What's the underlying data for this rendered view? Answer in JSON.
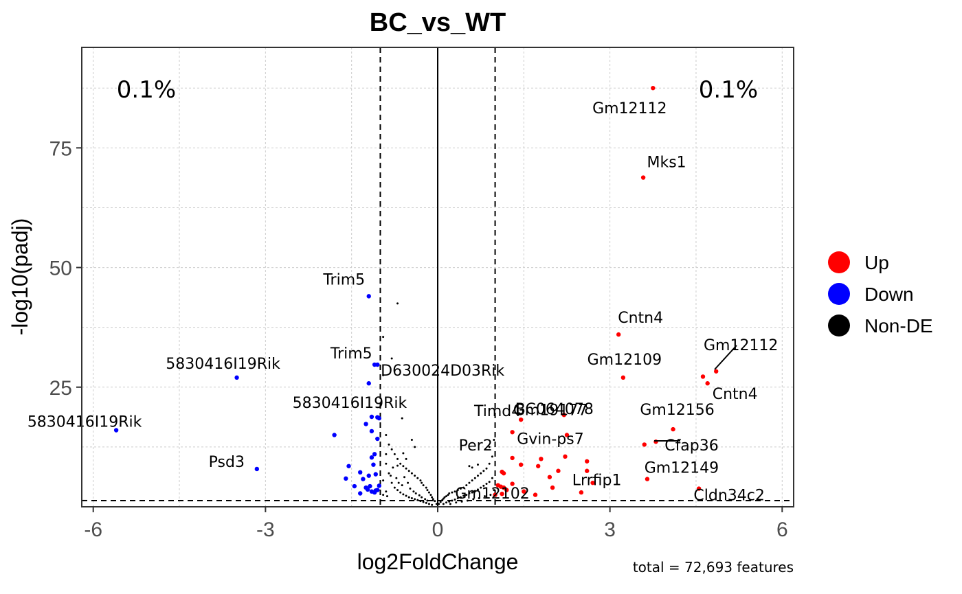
{
  "chart_data": {
    "type": "scatter",
    "title": "BC_vs_WT",
    "xlabel": "log2FoldChange",
    "ylabel": "-log10(padj)",
    "xlim": [
      -6.2,
      6.2
    ],
    "ylim": [
      0,
      96
    ],
    "x_ticks": [
      -6,
      -3,
      0,
      3,
      6
    ],
    "x_tick_labels": [
      "-6",
      "-3",
      "0",
      "3",
      "6"
    ],
    "y_ticks": [
      25,
      50,
      75
    ],
    "y_tick_labels": [
      "25",
      "50",
      "75"
    ],
    "grid": true,
    "thresholds": {
      "log2fc": [
        -1,
        1
      ],
      "padj_line": 1.3
    },
    "annotations": {
      "down_pct": "0.1%",
      "up_pct": "0.1%"
    },
    "caption": "total = 72,693 features",
    "legend": {
      "placement": "right",
      "items": [
        {
          "label": "Up",
          "color": "#ff0000"
        },
        {
          "label": "Down",
          "color": "#0000ff"
        },
        {
          "label": "Non-DE",
          "color": "#000000"
        }
      ]
    },
    "series": [
      {
        "name": "Up",
        "color": "#ff0000",
        "points": [
          [
            3.75,
            87.5
          ],
          [
            3.58,
            68.8
          ],
          [
            3.15,
            36
          ],
          [
            3.23,
            27
          ],
          [
            4.85,
            28.3
          ],
          [
            4.62,
            27.2
          ],
          [
            4.7,
            25.8
          ],
          [
            2.2,
            19.2
          ],
          [
            1.45,
            18.2
          ],
          [
            4.1,
            16.2
          ],
          [
            3.8,
            13.6
          ],
          [
            3.6,
            13
          ],
          [
            2.25,
            15
          ],
          [
            1.3,
            15.6
          ],
          [
            2.22,
            10.5
          ],
          [
            2.6,
            9.5
          ],
          [
            1.3,
            10.2
          ],
          [
            1.45,
            8.8
          ],
          [
            1.75,
            8.5
          ],
          [
            1.8,
            10
          ],
          [
            2.1,
            7.5
          ],
          [
            2.6,
            7.5
          ],
          [
            1.12,
            7.3
          ],
          [
            1.15,
            7
          ],
          [
            1.95,
            6.2
          ],
          [
            3.65,
            5.8
          ],
          [
            2.7,
            5
          ],
          [
            1.3,
            4.8
          ],
          [
            1.05,
            4.5
          ],
          [
            1.1,
            4.2
          ],
          [
            1.15,
            4
          ],
          [
            2.0,
            4
          ],
          [
            1.2,
            3.5
          ],
          [
            4.55,
            3.8
          ],
          [
            2.5,
            3
          ],
          [
            1.12,
            2.7
          ],
          [
            1.5,
            3.2
          ],
          [
            1.7,
            2.5
          ],
          [
            1.0,
            2.5
          ]
        ]
      },
      {
        "name": "Down",
        "color": "#0000ff",
        "points": [
          [
            -1.2,
            44
          ],
          [
            -1.05,
            29.7
          ],
          [
            -1.1,
            29.7
          ],
          [
            -3.5,
            27
          ],
          [
            -1.2,
            25.8
          ],
          [
            -1.15,
            18.8
          ],
          [
            -1.05,
            18.7
          ],
          [
            -1.02,
            18.5
          ],
          [
            -1.25,
            17.3
          ],
          [
            -5.6,
            16
          ],
          [
            -1.15,
            15.8
          ],
          [
            -1.8,
            15
          ],
          [
            -1.05,
            14.2
          ],
          [
            -1.1,
            11
          ],
          [
            -1.15,
            10.3
          ],
          [
            -3.15,
            7.9
          ],
          [
            -1.55,
            8.5
          ],
          [
            -1.12,
            8.8
          ],
          [
            -1.35,
            7.2
          ],
          [
            -1.2,
            6.5
          ],
          [
            -1.3,
            5.8
          ],
          [
            -1.6,
            5.9
          ],
          [
            -1.08,
            6.8
          ],
          [
            -1.45,
            4.3
          ],
          [
            -1.25,
            4
          ],
          [
            -1.22,
            3.6
          ],
          [
            -1.15,
            3.2
          ],
          [
            -1.05,
            3.5
          ],
          [
            -1.35,
            2.8
          ],
          [
            -1.1,
            3
          ],
          [
            -1.02,
            4.4
          ],
          [
            -1.18,
            4.3
          ],
          [
            -1.08,
            3.4
          ]
        ]
      },
      {
        "name": "Non-DE",
        "color": "#000000",
        "points": [
          [
            -0.7,
            42.5
          ],
          [
            -0.95,
            35.5
          ],
          [
            -0.8,
            31
          ],
          [
            -0.95,
            27.5
          ],
          [
            -0.62,
            18.5
          ],
          [
            -0.45,
            14
          ],
          [
            -0.4,
            12.5
          ],
          [
            -0.9,
            15
          ],
          [
            -0.85,
            13
          ],
          [
            -0.8,
            12
          ],
          [
            -0.75,
            11
          ],
          [
            -0.7,
            10
          ],
          [
            -0.65,
            9
          ],
          [
            -0.6,
            8.5
          ],
          [
            -0.55,
            8
          ],
          [
            -0.5,
            7.5
          ],
          [
            -0.45,
            7
          ],
          [
            -0.4,
            6.5
          ],
          [
            -0.35,
            6
          ],
          [
            -0.3,
            5.5
          ],
          [
            -0.28,
            5
          ],
          [
            -0.25,
            4.5
          ],
          [
            -0.2,
            4
          ],
          [
            -0.18,
            3.5
          ],
          [
            -0.15,
            3
          ],
          [
            -0.12,
            2.5
          ],
          [
            -0.1,
            2
          ],
          [
            -0.08,
            1.6
          ],
          [
            -0.05,
            1.2
          ],
          [
            -0.02,
            0.6
          ],
          [
            -0.9,
            9
          ],
          [
            -0.85,
            7
          ],
          [
            -0.8,
            5
          ],
          [
            -0.75,
            4
          ],
          [
            -0.7,
            3.5
          ],
          [
            -0.65,
            3
          ],
          [
            -0.6,
            2.6
          ],
          [
            -0.55,
            2.3
          ],
          [
            -0.5,
            2
          ],
          [
            -0.45,
            1.8
          ],
          [
            -0.4,
            1.6
          ],
          [
            -0.35,
            1.4
          ],
          [
            -0.3,
            1.2
          ],
          [
            -0.25,
            1
          ],
          [
            -0.2,
            0.8
          ],
          [
            -0.15,
            0.6
          ],
          [
            -0.1,
            0.4
          ],
          [
            -0.95,
            5.5
          ],
          [
            -0.95,
            2.5
          ],
          [
            -0.9,
            3.2
          ],
          [
            -0.88,
            2.2
          ],
          [
            -0.82,
            6.5
          ],
          [
            -0.78,
            8.2
          ],
          [
            -0.72,
            6
          ],
          [
            -0.68,
            5
          ],
          [
            -0.62,
            4.5
          ],
          [
            -0.58,
            6.2
          ],
          [
            -0.52,
            5
          ],
          [
            -0.48,
            3.8
          ],
          [
            -0.42,
            3.2
          ],
          [
            -0.38,
            2.8
          ],
          [
            -0.32,
            2.4
          ],
          [
            -0.28,
            2
          ],
          [
            -0.22,
            1.6
          ],
          [
            -0.18,
            1.3
          ],
          [
            -0.6,
            11.2
          ],
          [
            -0.55,
            10
          ],
          [
            -0.7,
            8.6
          ],
          [
            -0.9,
            11
          ],
          [
            0.02,
            0.6
          ],
          [
            0.05,
            1.0
          ],
          [
            0.08,
            1.4
          ],
          [
            0.1,
            1.7
          ],
          [
            0.12,
            2.0
          ],
          [
            0.15,
            2.2
          ],
          [
            0.18,
            2.5
          ],
          [
            0.2,
            2.8
          ],
          [
            0.25,
            3.0
          ],
          [
            0.3,
            3.2
          ],
          [
            0.35,
            3.5
          ],
          [
            0.4,
            3.8
          ],
          [
            0.45,
            4.0
          ],
          [
            0.5,
            4.5
          ],
          [
            0.55,
            5.0
          ],
          [
            0.6,
            5.5
          ],
          [
            0.65,
            6.0
          ],
          [
            0.7,
            6.5
          ],
          [
            0.75,
            7.0
          ],
          [
            0.8,
            7.5
          ],
          [
            0.85,
            8.0
          ],
          [
            0.9,
            9.0
          ],
          [
            0.95,
            10.5
          ],
          [
            0.55,
            8.5
          ],
          [
            0.6,
            8.2
          ],
          [
            0.7,
            8.8
          ],
          [
            0.9,
            12.5
          ],
          [
            0.98,
            14
          ],
          [
            0.1,
            0.6
          ],
          [
            0.15,
            0.9
          ],
          [
            0.2,
            1.1
          ],
          [
            0.25,
            1.3
          ],
          [
            0.3,
            1.5
          ],
          [
            0.35,
            1.8
          ],
          [
            0.4,
            2.0
          ],
          [
            0.45,
            2.3
          ],
          [
            0.5,
            2.5
          ],
          [
            0.55,
            2.8
          ],
          [
            0.6,
            3.0
          ],
          [
            0.65,
            3.3
          ],
          [
            0.7,
            3.6
          ],
          [
            0.75,
            4.0
          ],
          [
            0.8,
            4.4
          ],
          [
            0.85,
            4.8
          ],
          [
            0.9,
            5.2
          ],
          [
            0.95,
            6.0
          ],
          [
            0.98,
            3.5
          ],
          [
            0.92,
            2.5
          ],
          [
            0.82,
            2.2
          ],
          [
            0.72,
            1.8
          ],
          [
            0.62,
            1.6
          ],
          [
            0.52,
            1.3
          ],
          [
            0.42,
            1.1
          ],
          [
            0.32,
            0.9
          ],
          [
            0.22,
            0.6
          ]
        ]
      }
    ],
    "gene_labels": [
      {
        "text": "Gm12112",
        "x": 3.75,
        "y": 87.5
      },
      {
        "text": "Mks1",
        "x": 3.58,
        "y": 68.8
      },
      {
        "text": "Cntn4",
        "x": 3.15,
        "y": 36
      },
      {
        "text": "Gm12112",
        "x": 4.85,
        "y": 28.3
      },
      {
        "text": "Gm12109",
        "x": 3.23,
        "y": 27
      },
      {
        "text": "Cntn4",
        "x": 4.7,
        "y": 25.8
      },
      {
        "text": "Gm19177",
        "x": 2.25,
        "y": 23
      },
      {
        "text": "BC064078",
        "x": 2.2,
        "y": 19.2
      },
      {
        "text": "Timd4",
        "x": 1.45,
        "y": 18.2
      },
      {
        "text": "Gm12156",
        "x": 4.1,
        "y": 16.2
      },
      {
        "text": "Cfap36",
        "x": 3.8,
        "y": 13.6
      },
      {
        "text": "Gvin-ps7",
        "x": 2.25,
        "y": 15
      },
      {
        "text": "Per2",
        "x": 0.9,
        "y": 12.5
      },
      {
        "text": "Lrrfip1",
        "x": 2.7,
        "y": 7.5
      },
      {
        "text": "Gm12149",
        "x": 3.65,
        "y": 5.8
      },
      {
        "text": "Gm12102",
        "x": 1.12,
        "y": 2.7
      },
      {
        "text": "Cldn34c2",
        "x": 4.55,
        "y": 3.8
      },
      {
        "text": "Trim5",
        "x": -1.2,
        "y": 44
      },
      {
        "text": "Trim5",
        "x": -1.05,
        "y": 29.7
      },
      {
        "text": "D630024D03Rik",
        "x": -0.8,
        "y": 31
      },
      {
        "text": "5830416I19Rik",
        "x": -3.5,
        "y": 27
      },
      {
        "text": "5830416I19Rik",
        "x": -1.15,
        "y": 18.8
      },
      {
        "text": "5830416I19Rik",
        "x": -5.6,
        "y": 16
      },
      {
        "text": "Psd3",
        "x": -3.15,
        "y": 7.9
      }
    ]
  }
}
